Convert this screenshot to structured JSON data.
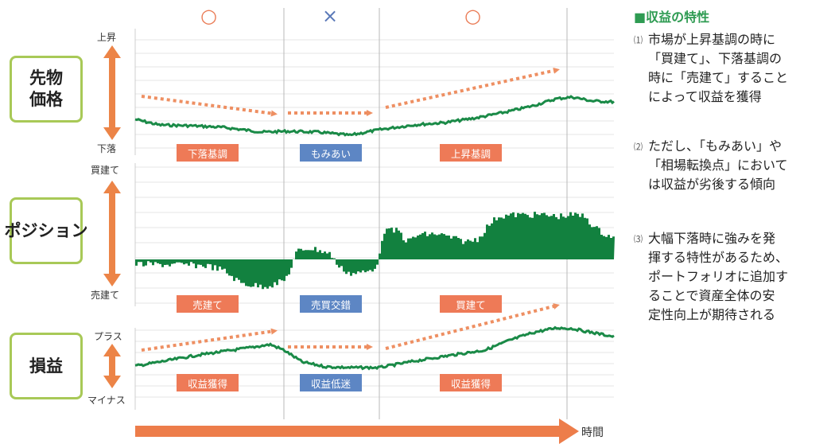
{
  "chart_data": {
    "type": "line",
    "x_axis_label": "時間",
    "phases": [
      {
        "mark": "○",
        "price_trend": "下落基調",
        "position_state": "売建て",
        "pnl_state": "収益獲得"
      },
      {
        "mark": "×",
        "price_trend": "もみあい",
        "position_state": "売買交錯",
        "pnl_state": "収益低迷"
      },
      {
        "mark": "○",
        "price_trend": "上昇基調",
        "position_state": "買建て",
        "pnl_state": "収益獲得"
      }
    ],
    "panels": [
      {
        "row_label": "先物\n価格",
        "axis_top": "上昇",
        "axis_bottom": "下落",
        "series_type": "line"
      },
      {
        "row_label": "ポジション",
        "axis_top": "買建て",
        "axis_bottom": "売建て",
        "series_type": "position"
      },
      {
        "row_label": "損益",
        "axis_top": "プラス",
        "axis_bottom": "マイナス",
        "series_type": "line"
      }
    ],
    "grid": true
  },
  "sidebar": {
    "title": "■収益の特性",
    "points": [
      {
        "num": "⑴",
        "text": "市場が上昇基調の時に\n「買建て」、下落基調の\n時に「売建て」すること\nによって収益を獲得"
      },
      {
        "num": "⑵",
        "text": "ただし、「もみあい」や\n「相場転換点」において\nは収益が劣後する傾向"
      },
      {
        "num": "⑶",
        "text": "大幅下落時に強みを発\n揮する特性があるため、\nポートフォリオに追加す\nることで資産全体の安\n定性向上が期待される"
      }
    ]
  },
  "colors": {
    "line": "#1a8a47",
    "position_fill": "#12813f",
    "dotted_arrow": "#ee8f62",
    "axis_arrow": "#ec8447",
    "time_arrow": "#ed7d4a",
    "label_border": "#a8c957",
    "tag_orange": "#ee7a57",
    "tag_blue": "#5d86c4",
    "sidebar_title": "#2e9b52"
  }
}
